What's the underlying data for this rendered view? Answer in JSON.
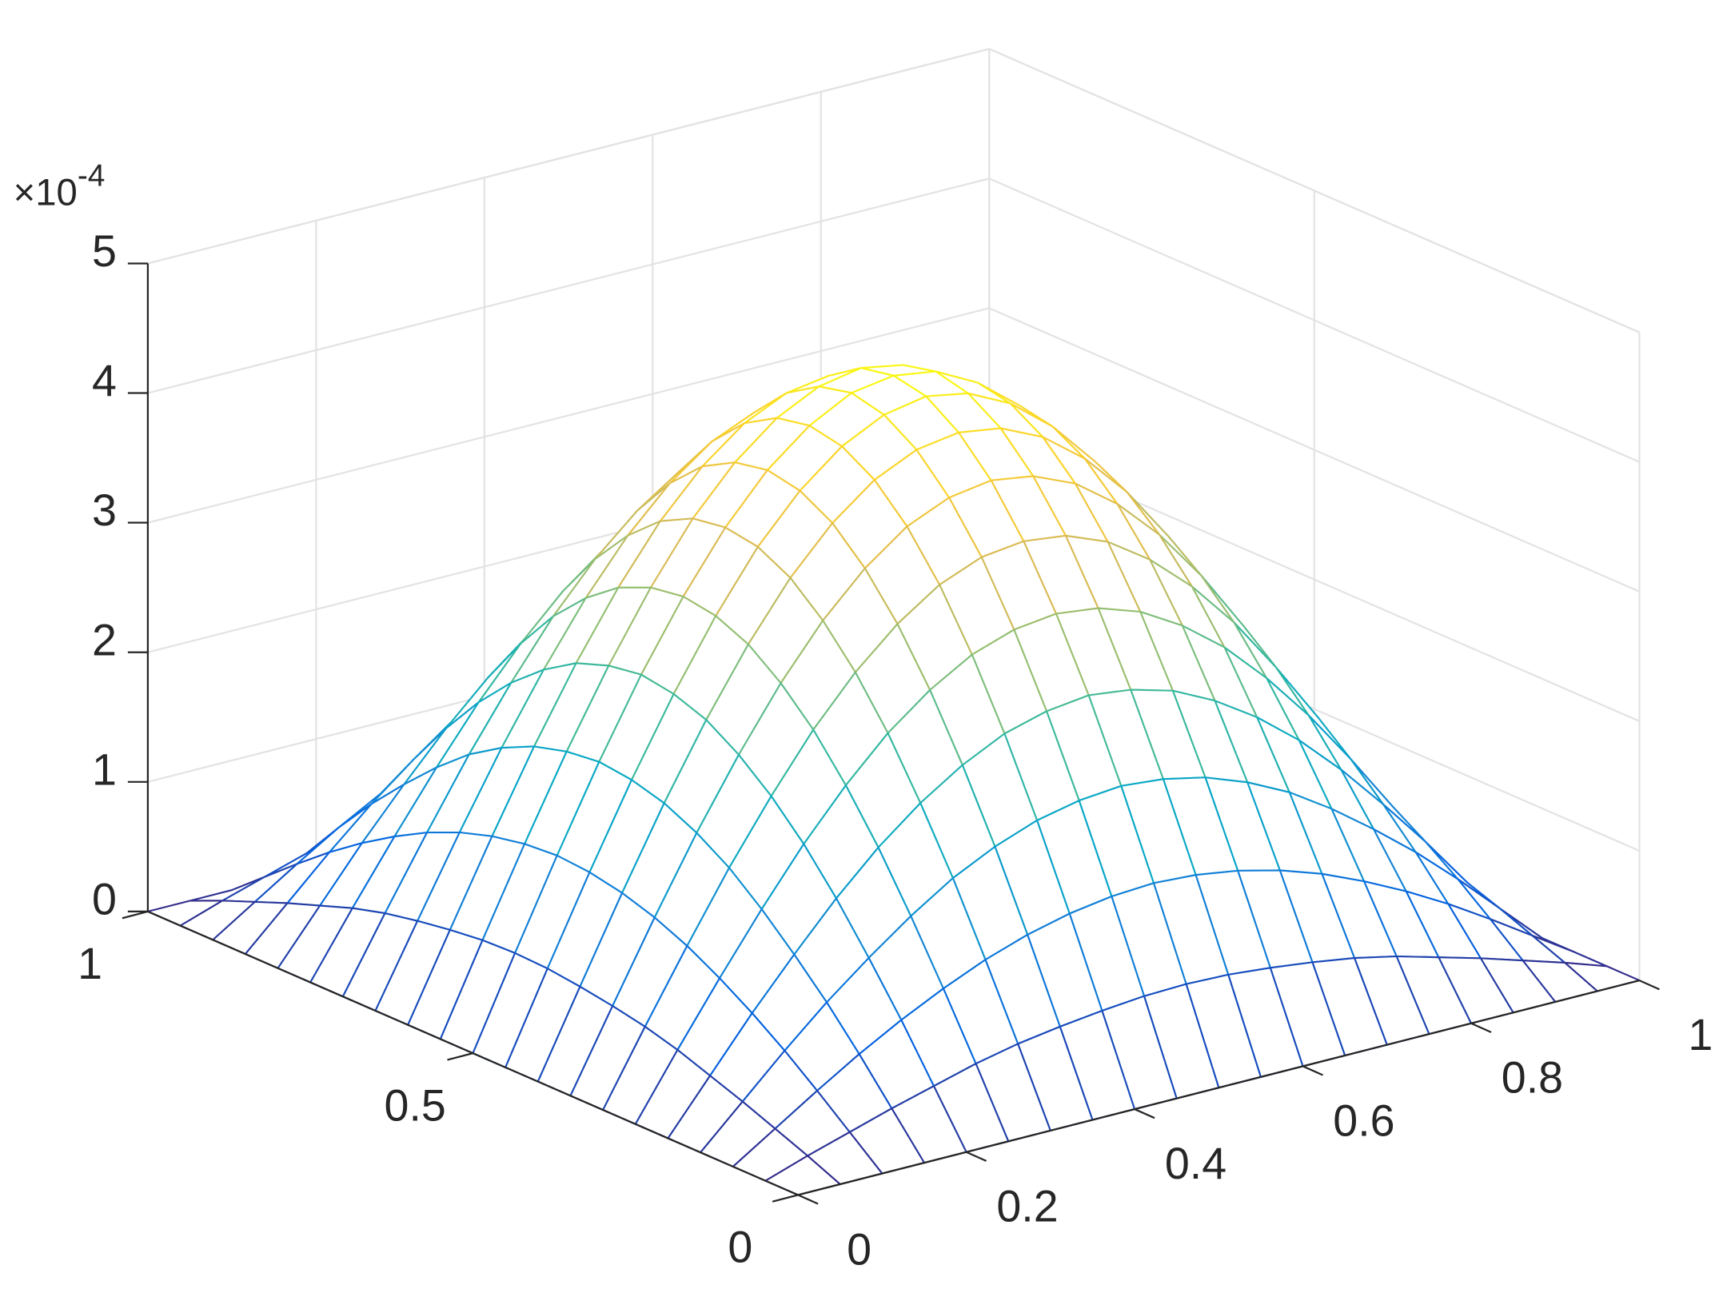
{
  "chart_data": {
    "type": "surface",
    "x": [
      0,
      0.05,
      0.1,
      0.15,
      0.2,
      0.25,
      0.3,
      0.35,
      0.4,
      0.45,
      0.5,
      0.55,
      0.6,
      0.65,
      0.7,
      0.75,
      0.8,
      0.85,
      0.9,
      0.95,
      1
    ],
    "y": [
      0,
      0.05,
      0.1,
      0.15,
      0.2,
      0.25,
      0.3,
      0.35,
      0.4,
      0.45,
      0.5,
      0.55,
      0.6,
      0.65,
      0.7,
      0.75,
      0.8,
      0.85,
      0.9,
      0.95,
      1
    ],
    "z": [
      [
        0,
        0,
        0,
        0,
        0,
        0,
        0,
        0,
        0,
        0,
        0,
        0,
        0,
        0,
        0,
        0,
        0,
        0,
        0,
        0,
        0
      ],
      [
        0,
        0.11,
        0.21,
        0.31,
        0.4,
        0.49,
        0.56,
        0.61,
        0.65,
        0.68,
        0.69,
        0.68,
        0.65,
        0.61,
        0.56,
        0.49,
        0.4,
        0.31,
        0.21,
        0.11,
        0
      ],
      [
        0,
        0.21,
        0.42,
        0.62,
        0.8,
        0.96,
        1.1,
        1.21,
        1.29,
        1.34,
        1.36,
        1.34,
        1.29,
        1.21,
        1.1,
        0.96,
        0.8,
        0.62,
        0.42,
        0.21,
        0
      ],
      [
        0,
        0.31,
        0.62,
        0.91,
        1.17,
        1.41,
        1.62,
        1.78,
        1.9,
        1.97,
        2.0,
        1.97,
        1.9,
        1.78,
        1.62,
        1.41,
        1.17,
        0.91,
        0.62,
        0.31,
        0
      ],
      [
        0,
        0.4,
        0.8,
        1.17,
        1.52,
        1.83,
        2.09,
        2.3,
        2.46,
        2.55,
        2.59,
        2.55,
        2.46,
        2.3,
        2.09,
        1.83,
        1.52,
        1.17,
        0.8,
        0.4,
        0
      ],
      [
        0,
        0.49,
        0.96,
        1.41,
        1.83,
        2.2,
        2.52,
        2.77,
        2.96,
        3.07,
        3.11,
        3.07,
        2.96,
        2.77,
        2.52,
        2.2,
        1.83,
        1.41,
        0.96,
        0.49,
        0
      ],
      [
        0,
        0.56,
        1.1,
        1.62,
        2.09,
        2.52,
        2.88,
        3.17,
        3.39,
        3.52,
        3.56,
        3.52,
        3.39,
        3.17,
        2.88,
        2.52,
        2.09,
        1.62,
        1.1,
        0.56,
        0
      ],
      [
        0,
        0.61,
        1.21,
        1.78,
        2.3,
        2.77,
        3.17,
        3.49,
        3.73,
        3.87,
        3.92,
        3.87,
        3.73,
        3.49,
        3.17,
        2.77,
        2.3,
        1.78,
        1.21,
        0.61,
        0
      ],
      [
        0,
        0.65,
        1.29,
        1.9,
        2.46,
        2.96,
        3.39,
        3.73,
        3.98,
        4.13,
        4.18,
        4.13,
        3.98,
        3.73,
        3.39,
        2.96,
        2.46,
        1.9,
        1.29,
        0.65,
        0
      ],
      [
        0,
        0.68,
        1.34,
        1.97,
        2.55,
        3.07,
        3.52,
        3.87,
        4.13,
        4.29,
        4.35,
        4.29,
        4.13,
        3.87,
        3.52,
        3.07,
        2.55,
        1.97,
        1.34,
        0.68,
        0
      ],
      [
        0,
        0.69,
        1.36,
        2.0,
        2.59,
        3.11,
        3.56,
        3.92,
        4.18,
        4.35,
        4.4,
        4.35,
        4.18,
        3.92,
        3.56,
        3.11,
        2.59,
        2.0,
        1.36,
        0.69,
        0
      ],
      [
        0,
        0.68,
        1.34,
        1.97,
        2.55,
        3.07,
        3.52,
        3.87,
        4.13,
        4.29,
        4.35,
        4.29,
        4.13,
        3.87,
        3.52,
        3.07,
        2.55,
        1.97,
        1.34,
        0.68,
        0
      ],
      [
        0,
        0.65,
        1.29,
        1.9,
        2.46,
        2.96,
        3.39,
        3.73,
        3.98,
        4.13,
        4.18,
        4.13,
        3.98,
        3.73,
        3.39,
        2.96,
        2.46,
        1.9,
        1.29,
        0.65,
        0
      ],
      [
        0,
        0.61,
        1.21,
        1.78,
        2.3,
        2.77,
        3.17,
        3.49,
        3.73,
        3.87,
        3.92,
        3.87,
        3.73,
        3.49,
        3.17,
        2.77,
        2.3,
        1.78,
        1.21,
        0.61,
        0
      ],
      [
        0,
        0.56,
        1.1,
        1.62,
        2.09,
        2.52,
        2.88,
        3.17,
        3.39,
        3.52,
        3.56,
        3.52,
        3.39,
        3.17,
        2.88,
        2.52,
        2.09,
        1.62,
        1.1,
        0.56,
        0
      ],
      [
        0,
        0.49,
        0.96,
        1.41,
        1.83,
        2.2,
        2.52,
        2.77,
        2.96,
        3.07,
        3.11,
        3.07,
        2.96,
        2.77,
        2.52,
        2.2,
        1.83,
        1.41,
        0.96,
        0.49,
        0
      ],
      [
        0,
        0.4,
        0.8,
        1.17,
        1.52,
        1.83,
        2.09,
        2.3,
        2.46,
        2.55,
        2.59,
        2.55,
        2.46,
        2.3,
        2.09,
        1.83,
        1.52,
        1.17,
        0.8,
        0.4,
        0
      ],
      [
        0,
        0.31,
        0.62,
        0.91,
        1.17,
        1.41,
        1.62,
        1.78,
        1.9,
        1.97,
        2.0,
        1.97,
        1.9,
        1.78,
        1.62,
        1.41,
        1.17,
        0.91,
        0.62,
        0.31,
        0
      ],
      [
        0,
        0.21,
        0.42,
        0.62,
        0.8,
        0.96,
        1.1,
        1.21,
        1.29,
        1.34,
        1.36,
        1.34,
        1.29,
        1.21,
        1.1,
        0.96,
        0.8,
        0.62,
        0.42,
        0.21,
        0
      ],
      [
        0,
        0.11,
        0.21,
        0.31,
        0.4,
        0.49,
        0.56,
        0.61,
        0.65,
        0.68,
        0.69,
        0.68,
        0.65,
        0.61,
        0.56,
        0.49,
        0.4,
        0.31,
        0.21,
        0.11,
        0
      ],
      [
        0,
        0,
        0,
        0,
        0,
        0,
        0,
        0,
        0,
        0,
        0,
        0,
        0,
        0,
        0,
        0,
        0,
        0,
        0,
        0,
        0
      ]
    ],
    "xlim": [
      0,
      1
    ],
    "ylim": [
      0,
      1
    ],
    "zlim": [
      0,
      5
    ],
    "xticks": [
      0,
      0.2,
      0.4,
      0.6,
      0.8,
      1
    ],
    "yticks": [
      0,
      0.5,
      1
    ],
    "zticks": [
      0,
      1,
      2,
      3,
      4,
      5
    ],
    "z_exponent_label": {
      "base": "×10",
      "power": "-4"
    },
    "grid": true,
    "colormap": [
      "#352a87",
      "#0363e1",
      "#1485d4",
      "#06a7c6",
      "#38b99e",
      "#92bf73",
      "#d9ba56",
      "#fcce2e",
      "#f9fb0e"
    ]
  }
}
